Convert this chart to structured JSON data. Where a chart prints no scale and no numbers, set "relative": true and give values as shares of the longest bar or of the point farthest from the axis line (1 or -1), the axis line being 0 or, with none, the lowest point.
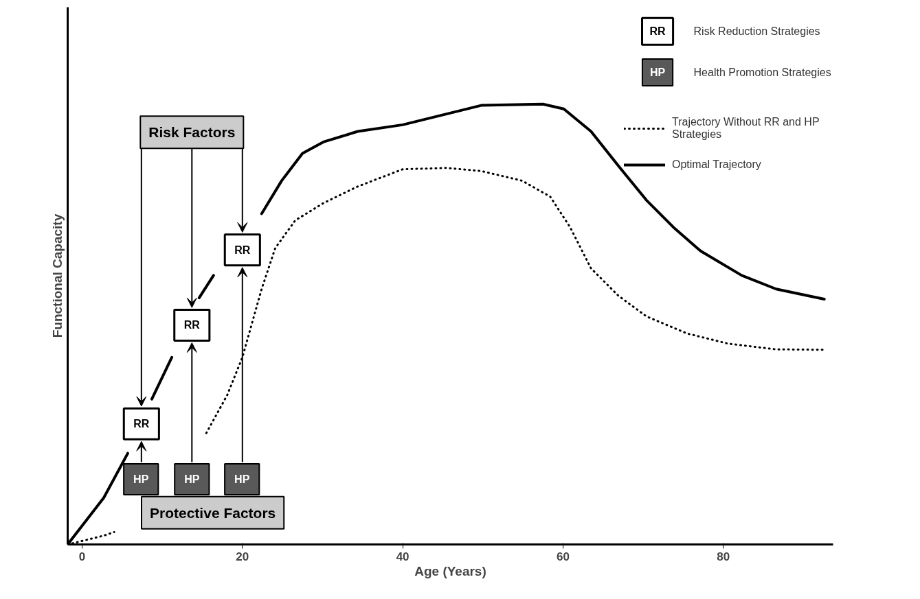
{
  "chart_data": {
    "type": "line",
    "relative": true,
    "xlabel": "Age (Years)",
    "ylabel": "Functional Capacity",
    "xlim": [
      -1.8,
      93.7
    ],
    "xticks": [
      0,
      20,
      40,
      60,
      80
    ],
    "grid": false,
    "legend": "top right",
    "series": [
      {
        "name": "Trajectory Without RR and HP Strategies",
        "color": "#000000",
        "line_style": "dotted",
        "x": [
          -1.8,
          2.7,
          4.0,
          6.9,
          11.2,
          15.5,
          18.1,
          20.0,
          22.4,
          24.1,
          26.6,
          30.1,
          34.4,
          40.0,
          45.5,
          49.8,
          54.9,
          58.4,
          60.9,
          63.5,
          66.9,
          70.4,
          75.5,
          80.6,
          86.6,
          92.6
        ],
        "values": [
          0,
          0.02,
          0.028,
          null,
          null,
          0.253,
          0.339,
          0.425,
          0.58,
          0.673,
          0.736,
          0.775,
          0.813,
          0.852,
          0.855,
          0.848,
          0.826,
          0.79,
          0.72,
          0.627,
          0.565,
          0.518,
          0.479,
          0.456,
          0.443,
          0.442
        ]
      },
      {
        "name": "Optimal Trajectory",
        "color": "#000000",
        "line_style": "solid",
        "x": [
          -1.8,
          2.7,
          5.7,
          7.8,
          8.7,
          11.2,
          13.8,
          14.6,
          16.4,
          20.0,
          22.4,
          24.9,
          27.5,
          30.1,
          34.4,
          40.0,
          49.8,
          57.5,
          60.1,
          63.5,
          66.9,
          70.4,
          73.8,
          77.2,
          82.3,
          86.6,
          92.6
        ],
        "values": [
          0,
          0.106,
          0.207,
          null,
          0.33,
          0.425,
          null,
          0.56,
          0.611,
          null,
          0.751,
          0.826,
          0.888,
          0.914,
          0.938,
          0.953,
          0.997,
          1.0,
          0.989,
          0.938,
          0.86,
          0.782,
          0.72,
          0.666,
          0.611,
          0.58,
          0.557
        ]
      }
    ],
    "annotations": [
      "Risk Factors",
      "Protective Factors",
      "HP",
      "HP",
      "HP",
      "RR",
      "RR",
      "RR",
      "RR",
      "Risk Reduction Strategies",
      "HP",
      "Health Promotion Strategies"
    ]
  }
}
